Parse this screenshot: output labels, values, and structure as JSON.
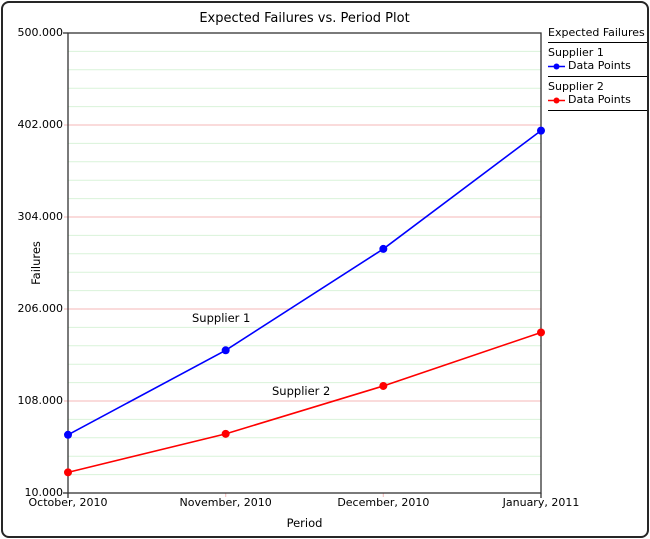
{
  "chart_data": {
    "type": "line",
    "title": "Expected Failures vs. Period Plot",
    "xlabel": "Period",
    "ylabel": "Failures",
    "categories": [
      "October, 2010",
      "November, 2010",
      "December, 2010",
      "January, 2011"
    ],
    "series": [
      {
        "name": "Supplier 1",
        "legend_label": "Data Points",
        "color": "#0000ff",
        "values": [
          72,
          162,
          270,
          396
        ]
      },
      {
        "name": "Supplier 2",
        "legend_label": "Data Points",
        "color": "#ff0000",
        "values": [
          32,
          73,
          124,
          181
        ]
      }
    ],
    "ylim": [
      10,
      500
    ],
    "y_ticks": [
      10,
      108,
      206,
      304,
      402,
      500
    ],
    "y_tick_labels": [
      "10.000",
      "108.000",
      "206.000",
      "304.000",
      "402.000",
      "500.000"
    ],
    "minor_divisions": 5,
    "grid": {
      "minor_color": "#d9f3d9",
      "major_color": "#f6c5c5",
      "vertical_gridlines": false
    },
    "legend": {
      "title": "Expected Failures",
      "position": "top-right"
    },
    "annotations": [
      {
        "text": "Supplier 1",
        "x": 192,
        "y": 311
      },
      {
        "text": "Supplier 2",
        "x": 272,
        "y": 384
      }
    ]
  }
}
